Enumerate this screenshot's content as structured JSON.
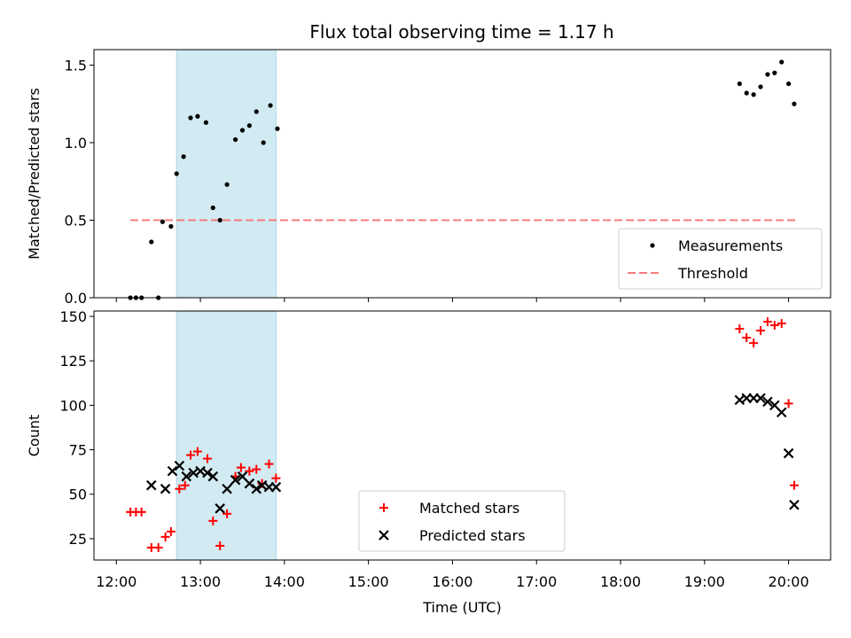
{
  "title": "Flux total observing time = 1.17 h",
  "colors": {
    "measurement": "#000000",
    "threshold": "#f47c7c",
    "matched": "#ff0000",
    "predicted": "#000000",
    "shade": "#add8e6"
  },
  "chart_data": [
    {
      "type": "scatter",
      "ylabel": "Matched/Predicted stars",
      "xlim": [
        "11:44",
        "20:30"
      ],
      "ylim": [
        0,
        1.6
      ],
      "yticks": [
        0,
        0.5,
        1.0,
        1.5
      ],
      "ytick_labels": [
        "0.0",
        "0.5",
        "1.0",
        "1.5"
      ],
      "xticks": [
        "12:00",
        "13:00",
        "14:00",
        "15:00",
        "16:00",
        "17:00",
        "18:00",
        "19:00",
        "20:00"
      ],
      "shaded_interval": [
        "12:43",
        "13:54"
      ],
      "legend": {
        "position": "lower right",
        "entries": [
          "Measurements",
          "Threshold"
        ]
      },
      "threshold": {
        "name": "Threshold",
        "y": 0.5,
        "x": [
          "12:10",
          "20:05"
        ]
      },
      "series": [
        {
          "name": "Measurements",
          "points": [
            [
              "12:10",
              0.0
            ],
            [
              "12:14",
              0.0
            ],
            [
              "12:18",
              0.0
            ],
            [
              "12:30",
              0.0
            ],
            [
              "12:25",
              0.36
            ],
            [
              "12:33",
              0.49
            ],
            [
              "12:39",
              0.46
            ],
            [
              "12:43",
              0.8
            ],
            [
              "12:48",
              0.91
            ],
            [
              "12:53",
              1.16
            ],
            [
              "12:58",
              1.17
            ],
            [
              "13:04",
              1.13
            ],
            [
              "13:09",
              0.58
            ],
            [
              "13:14",
              0.5
            ],
            [
              "13:19",
              0.73
            ],
            [
              "13:25",
              1.02
            ],
            [
              "13:30",
              1.08
            ],
            [
              "13:35",
              1.11
            ],
            [
              "13:40",
              1.2
            ],
            [
              "13:45",
              1.0
            ],
            [
              "13:50",
              1.24
            ],
            [
              "13:55",
              1.09
            ],
            [
              "19:25",
              1.38
            ],
            [
              "19:30",
              1.32
            ],
            [
              "19:35",
              1.31
            ],
            [
              "19:40",
              1.36
            ],
            [
              "19:45",
              1.44
            ],
            [
              "19:50",
              1.45
            ],
            [
              "19:55",
              1.52
            ],
            [
              "20:00",
              1.38
            ],
            [
              "20:04",
              1.25
            ]
          ]
        }
      ]
    },
    {
      "type": "scatter",
      "ylabel": "Count",
      "xlabel": "Time (UTC)",
      "xlim": [
        "11:44",
        "20:30"
      ],
      "ylim": [
        13,
        153
      ],
      "yticks": [
        25,
        50,
        75,
        100,
        125,
        150
      ],
      "xticks": [
        "12:00",
        "13:00",
        "14:00",
        "15:00",
        "16:00",
        "17:00",
        "18:00",
        "19:00",
        "20:00"
      ],
      "shaded_interval": [
        "12:43",
        "13:54"
      ],
      "legend": {
        "position": "lower center",
        "entries": [
          "Matched stars",
          "Predicted stars"
        ]
      },
      "series": [
        {
          "name": "Matched stars",
          "marker": "+",
          "points": [
            [
              "12:10",
              40
            ],
            [
              "12:14",
              40
            ],
            [
              "12:18",
              40
            ],
            [
              "12:25",
              20
            ],
            [
              "12:30",
              20
            ],
            [
              "12:35",
              26
            ],
            [
              "12:39",
              29
            ],
            [
              "12:45",
              53
            ],
            [
              "12:49",
              55
            ],
            [
              "12:53",
              72
            ],
            [
              "12:58",
              74
            ],
            [
              "13:05",
              70
            ],
            [
              "13:09",
              35
            ],
            [
              "13:14",
              21
            ],
            [
              "13:19",
              39
            ],
            [
              "13:25",
              60
            ],
            [
              "13:29",
              65
            ],
            [
              "13:35",
              63
            ],
            [
              "13:40",
              64
            ],
            [
              "13:44",
              56
            ],
            [
              "13:49",
              67
            ],
            [
              "13:54",
              59
            ],
            [
              "19:25",
              143
            ],
            [
              "19:30",
              138
            ],
            [
              "19:35",
              135
            ],
            [
              "19:40",
              142
            ],
            [
              "19:45",
              147
            ],
            [
              "19:50",
              145
            ],
            [
              "19:55",
              146
            ],
            [
              "20:00",
              101
            ],
            [
              "20:04",
              55
            ]
          ]
        },
        {
          "name": "Predicted stars",
          "marker": "x",
          "points": [
            [
              "12:25",
              55
            ],
            [
              "12:35",
              53
            ],
            [
              "12:40",
              63
            ],
            [
              "12:45",
              66
            ],
            [
              "12:50",
              60
            ],
            [
              "12:55",
              62
            ],
            [
              "13:00",
              63
            ],
            [
              "13:05",
              62
            ],
            [
              "13:09",
              60
            ],
            [
              "13:14",
              42
            ],
            [
              "13:19",
              53
            ],
            [
              "13:25",
              58
            ],
            [
              "13:30",
              60
            ],
            [
              "13:35",
              56
            ],
            [
              "13:40",
              53
            ],
            [
              "13:44",
              55
            ],
            [
              "13:49",
              54
            ],
            [
              "13:54",
              54
            ],
            [
              "19:25",
              103
            ],
            [
              "19:30",
              104
            ],
            [
              "19:35",
              104
            ],
            [
              "19:40",
              104
            ],
            [
              "19:45",
              102
            ],
            [
              "19:50",
              100
            ],
            [
              "19:55",
              96
            ],
            [
              "20:00",
              73
            ],
            [
              "20:04",
              44
            ]
          ]
        }
      ]
    }
  ]
}
